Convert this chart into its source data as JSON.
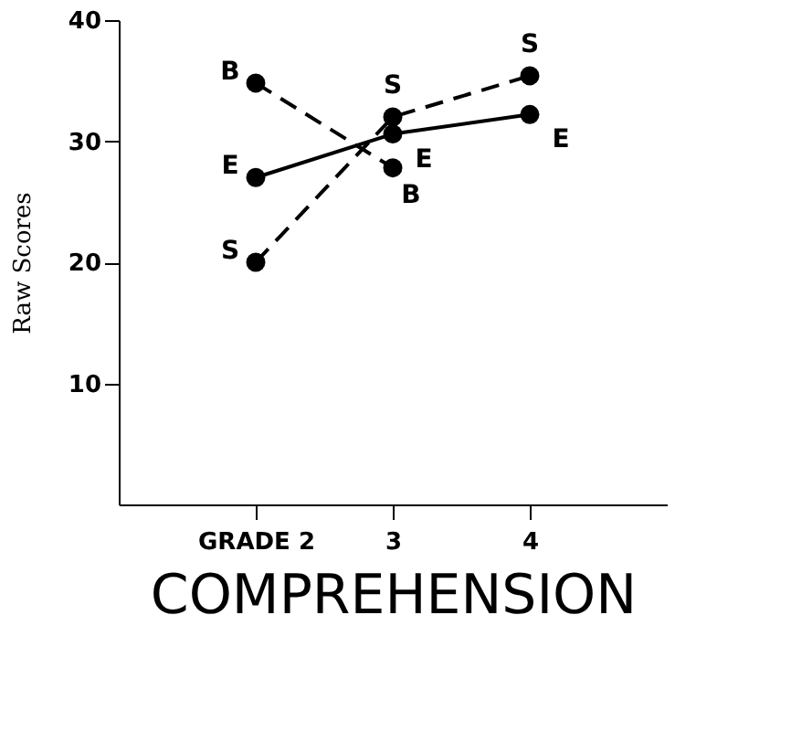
{
  "chart_data": {
    "type": "line",
    "xlabel": "COMPREHENSION",
    "ylabel": "Raw Scores",
    "x": [
      2,
      3,
      4
    ],
    "xlim": [
      1,
      5
    ],
    "xticks": [
      {
        "value": 2,
        "label": "GRADE 2"
      },
      3,
      4
    ],
    "ylim": [
      0,
      40
    ],
    "yticks": [
      10,
      20,
      30,
      40
    ],
    "grid": false,
    "marker": "circle",
    "series": [
      {
        "name": "E",
        "color": "#000000",
        "line_style": "solid",
        "values": [
          27,
          30.6,
          32.2
        ]
      },
      {
        "name": "S",
        "color": "#000000",
        "line_style": "dashed",
        "values": [
          20,
          32,
          35.4
        ]
      },
      {
        "name": "B",
        "color": "#000000",
        "line_style": "dashed",
        "values": [
          34.8,
          27.8,
          null
        ]
      }
    ]
  }
}
